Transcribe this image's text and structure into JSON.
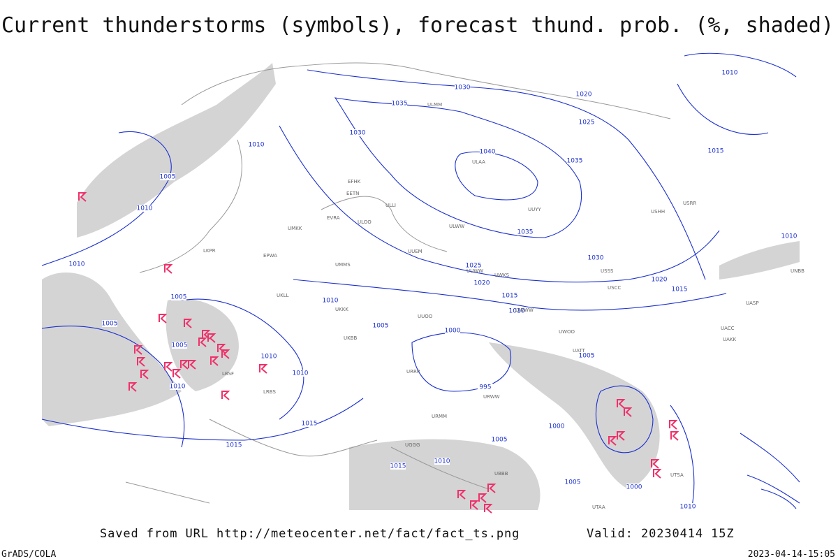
{
  "title": "Current thunderstorms (symbols), forecast thund. prob. (%, shaded)",
  "footer": {
    "source": "Saved from URL http://meteocenter.net/fact/fact_ts.png",
    "valid": "Valid: 20230414 15Z",
    "software": "GrADS/COLA",
    "timestamp": "2023-04-14-15:05"
  },
  "isobar_labels": [
    "1030",
    "1035",
    "1030",
    "1040",
    "1035",
    "1035",
    "1030",
    "1025",
    "1020",
    "1015",
    "1010",
    "1020",
    "1025",
    "1015",
    "1010",
    "1010",
    "1020",
    "1015",
    "1010",
    "1005",
    "1010",
    "1010",
    "1005",
    "1005",
    "1005",
    "1010",
    "1005",
    "1000",
    "995",
    "1005",
    "1000",
    "1005",
    "1010",
    "1010",
    "1010",
    "1015",
    "1015",
    "1015",
    "1010",
    "1005",
    "1000",
    "1010"
  ],
  "station_labels": [
    "ULAA",
    "ULLI",
    "ULWW",
    "UUEM",
    "UUWW",
    "UUOO",
    "UWKS",
    "UWWW",
    "ULMM",
    "USSS",
    "USCC",
    "UACC",
    "UAKK",
    "UTAA",
    "UBBB",
    "UKKK",
    "UKBB",
    "UMMS",
    "EPWA",
    "UKLL",
    "LBSF",
    "LRBS",
    "UGGG",
    "URRR",
    "URWW",
    "URMM",
    "UTSA",
    "ULOO",
    "UUYY",
    "USHH",
    "USRR",
    "UNBB",
    "UASP",
    "UATT",
    "UWOO",
    "EFHK",
    "EETN",
    "EVRA",
    "UMKK",
    "LKPR"
  ]
}
